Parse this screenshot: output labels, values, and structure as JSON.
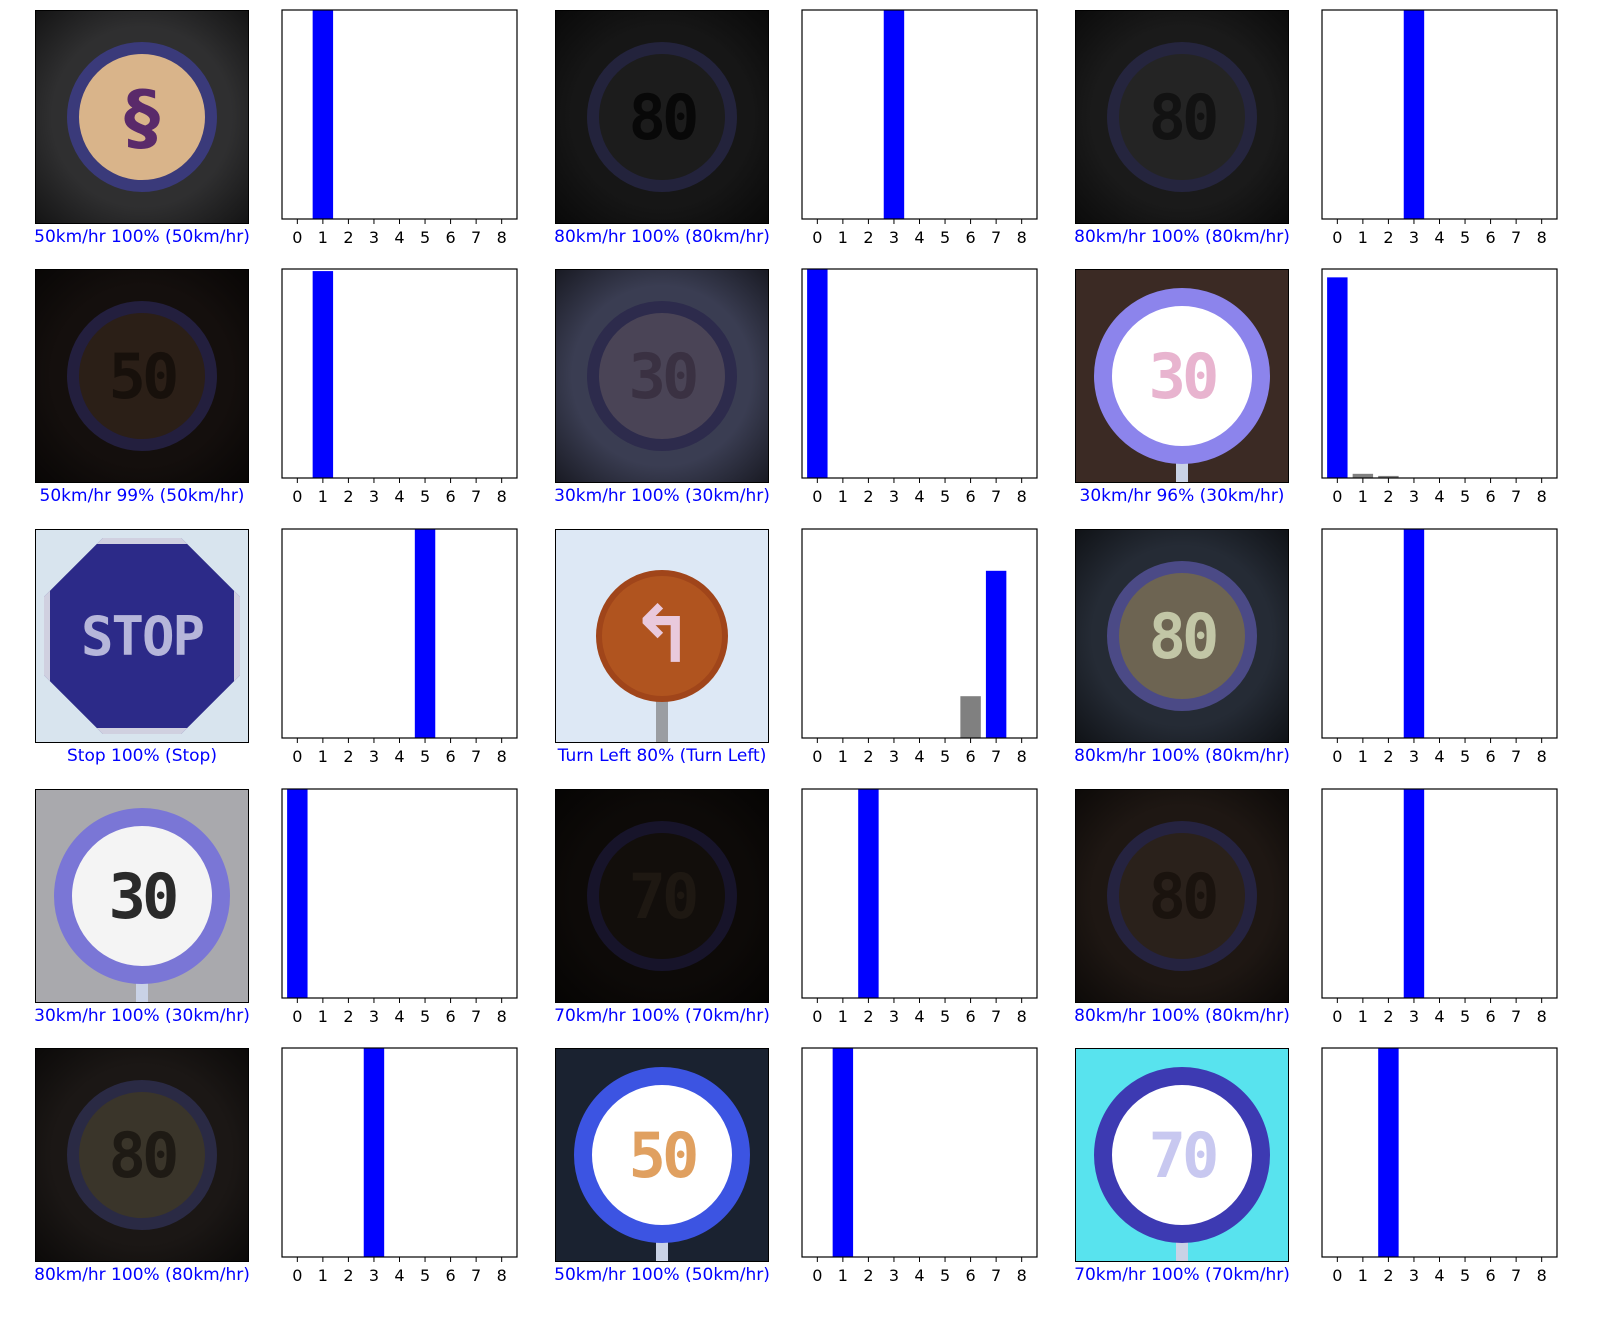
{
  "chart_data": {
    "type": "bar",
    "categories": [
      "0",
      "1",
      "2",
      "3",
      "4",
      "5",
      "6",
      "7",
      "8"
    ],
    "ylim": [
      0,
      1
    ],
    "grid": false,
    "colors": {
      "predicted": "#0000ff",
      "other": "#808080",
      "caption_correct": "#0000ff"
    },
    "panels": [
      {
        "label": "50km/hr 100% (50km/hr)",
        "values": [
          0,
          1,
          0,
          0,
          0,
          0,
          0,
          0,
          0
        ],
        "highlight": 1,
        "sign": {
          "style": "dark",
          "bg": "#2f2f30",
          "ring": "#3a3a7a",
          "face": "#d9b48a",
          "text": "",
          "glyph": "swirl"
        }
      },
      {
        "label": "80km/hr 100% (80km/hr)",
        "values": [
          0,
          0,
          0,
          1,
          0,
          0,
          0,
          0,
          0
        ],
        "highlight": 3,
        "sign": {
          "style": "dark",
          "bg": "#161616",
          "ring": "#23233c",
          "face": "#1c1c1c",
          "text": "80",
          "textcolor": "#080808"
        }
      },
      {
        "label": "80km/hr 100% (80km/hr)",
        "values": [
          0,
          0,
          0,
          1,
          0,
          0,
          0,
          0,
          0
        ],
        "highlight": 3,
        "sign": {
          "style": "dark",
          "bg": "#1a1a1a",
          "ring": "#25253e",
          "face": "#242424",
          "text": "80",
          "textcolor": "#121212"
        }
      },
      {
        "label": "50km/hr 99% (50km/hr)",
        "values": [
          0,
          0.99,
          0,
          0,
          0,
          0,
          0,
          0,
          0
        ],
        "highlight": 1,
        "sign": {
          "style": "dark",
          "bg": "#140f0d",
          "ring": "#231f3e",
          "face": "#2b1f17",
          "text": "50",
          "textcolor": "#17100b"
        }
      },
      {
        "label": "30km/hr 100% (30km/hr)",
        "values": [
          1,
          0,
          0,
          0,
          0,
          0,
          0,
          0,
          0
        ],
        "highlight": 0,
        "sign": {
          "style": "dark",
          "bg": "#3a3d52",
          "ring": "#2d2b4c",
          "face": "#4a4456",
          "text": "30",
          "textcolor": "#3a3142"
        }
      },
      {
        "label": "30km/hr 96% (30km/hr)",
        "values": [
          0.96,
          0.02,
          0.01,
          0,
          0,
          0,
          0,
          0,
          0
        ],
        "highlight": 0,
        "sign": {
          "style": "bright",
          "bg": "#3b2a24",
          "ring": "#8c84ec",
          "face": "#ffffff",
          "text": "30",
          "textcolor": "#e8b4cf"
        }
      },
      {
        "label": "Stop 100% (Stop)",
        "values": [
          0,
          0,
          0,
          0,
          0,
          1,
          0,
          0,
          0
        ],
        "highlight": 5,
        "sign": {
          "style": "stop",
          "bg": "#d8e4ee",
          "ring": "#2c2a88",
          "face": "#332e8e",
          "text": "STOP",
          "textcolor": "#b6b6da"
        }
      },
      {
        "label": "Turn Left 80% (Turn Left)",
        "values": [
          0,
          0,
          0,
          0,
          0,
          0,
          0.2,
          0.8,
          0
        ],
        "highlight": 7,
        "sign": {
          "style": "turn",
          "bg": "#dde8f5",
          "ring": "#a0451a",
          "face": "#b0541f",
          "text": "",
          "glyph": "arrow"
        }
      },
      {
        "label": "80km/hr 100% (80km/hr)",
        "values": [
          0,
          0,
          0,
          1,
          0,
          0,
          0,
          0,
          0
        ],
        "highlight": 3,
        "sign": {
          "style": "dark",
          "bg": "#252b35",
          "ring": "#4b4a86",
          "face": "#6d6452",
          "text": "80",
          "textcolor": "#c2c6a6"
        }
      },
      {
        "label": "30km/hr 100% (30km/hr)",
        "values": [
          1,
          0,
          0,
          0,
          0,
          0,
          0,
          0,
          0
        ],
        "highlight": 0,
        "sign": {
          "style": "bright",
          "bg": "#a9a9ad",
          "ring": "#7a76d6",
          "face": "#f4f4f4",
          "text": "30",
          "textcolor": "#2a2a2a"
        }
      },
      {
        "label": "70km/hr 100% (70km/hr)",
        "values": [
          0,
          0,
          1,
          0,
          0,
          0,
          0,
          0,
          0
        ],
        "highlight": 2,
        "sign": {
          "style": "dark",
          "bg": "#0d0a08",
          "ring": "#17142a",
          "face": "#120e0b",
          "text": "70",
          "textcolor": "#1e1812"
        }
      },
      {
        "label": "80km/hr 100% (80km/hr)",
        "values": [
          0,
          0,
          0,
          1,
          0,
          0,
          0,
          0,
          0
        ],
        "highlight": 3,
        "sign": {
          "style": "dark",
          "bg": "#1e1713",
          "ring": "#252340",
          "face": "#2a211b",
          "text": "80",
          "textcolor": "#1a130e"
        }
      },
      {
        "label": "80km/hr 100% (80km/hr)",
        "values": [
          0,
          0,
          0,
          1,
          0,
          0,
          0,
          0,
          0
        ],
        "highlight": 3,
        "sign": {
          "style": "dark",
          "bg": "#1b1715",
          "ring": "#2a2a44",
          "face": "#3a352a",
          "text": "80",
          "textcolor": "#1e1a14"
        }
      },
      {
        "label": "50km/hr 100% (50km/hr)",
        "values": [
          0,
          1,
          0,
          0,
          0,
          0,
          0,
          0,
          0
        ],
        "highlight": 1,
        "sign": {
          "style": "bright",
          "bg": "#1a2230",
          "ring": "#3c54e2",
          "face": "#ffffff",
          "text": "50",
          "textcolor": "#e0a060"
        }
      },
      {
        "label": "70km/hr 100% (70km/hr)",
        "values": [
          0,
          0,
          1,
          0,
          0,
          0,
          0,
          0,
          0
        ],
        "highlight": 2,
        "sign": {
          "style": "bright",
          "bg": "#58e3ee",
          "ring": "#3d3ab2",
          "face": "#ffffff",
          "text": "70",
          "textcolor": "#c8c8f0"
        }
      }
    ]
  }
}
